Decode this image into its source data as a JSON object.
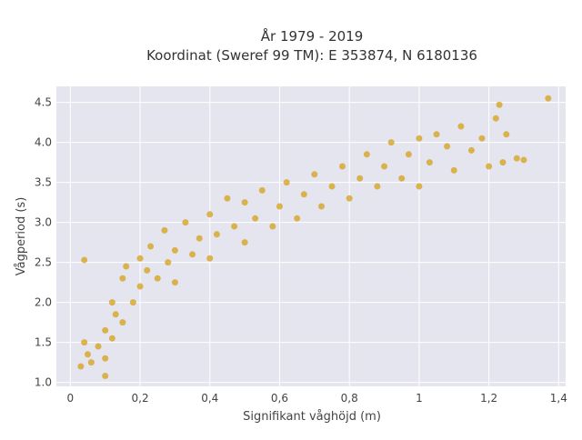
{
  "chart_data": {
    "type": "scatter",
    "title_lines": [
      "År 1979 - 2019",
      "Koordinat (Sweref 99 TM): E 353874, N 6180136"
    ],
    "xlabel": "Signifikant våghöjd (m)",
    "ylabel": "Vågperiod (s)",
    "xlim": [
      -0.04,
      1.42
    ],
    "ylim": [
      0.95,
      4.7
    ],
    "x_ticks": [
      0,
      0.2,
      0.4,
      0.6,
      0.8,
      1,
      1.2,
      1.4
    ],
    "x_tick_labels": [
      "0",
      "0,2",
      "0,4",
      "0,6",
      "0,8",
      "1",
      "1,2",
      "1,4"
    ],
    "y_ticks": [
      1.0,
      1.5,
      2.0,
      2.5,
      3.0,
      3.5,
      4.0,
      4.5
    ],
    "y_tick_labels": [
      "1.0",
      "1.5",
      "2.0",
      "2.5",
      "3.0",
      "3.5",
      "4.0",
      "4.5"
    ],
    "grid": true,
    "legend": "none",
    "colors": {
      "marker": "#d4a017",
      "plot_background": "#e5e5f0",
      "grid": "#ffffff"
    },
    "points": [
      [
        0.03,
        1.2
      ],
      [
        0.04,
        2.53
      ],
      [
        0.04,
        1.5
      ],
      [
        0.05,
        1.35
      ],
      [
        0.06,
        1.25
      ],
      [
        0.08,
        1.45
      ],
      [
        0.1,
        1.08
      ],
      [
        0.1,
        1.65
      ],
      [
        0.1,
        1.3
      ],
      [
        0.12,
        1.55
      ],
      [
        0.12,
        2.0
      ],
      [
        0.13,
        1.85
      ],
      [
        0.15,
        2.3
      ],
      [
        0.15,
        1.75
      ],
      [
        0.16,
        2.45
      ],
      [
        0.18,
        2.0
      ],
      [
        0.2,
        2.55
      ],
      [
        0.2,
        2.2
      ],
      [
        0.22,
        2.4
      ],
      [
        0.23,
        2.7
      ],
      [
        0.25,
        2.3
      ],
      [
        0.27,
        2.9
      ],
      [
        0.28,
        2.5
      ],
      [
        0.3,
        2.65
      ],
      [
        0.3,
        2.25
      ],
      [
        0.33,
        3.0
      ],
      [
        0.35,
        2.6
      ],
      [
        0.37,
        2.8
      ],
      [
        0.4,
        2.55
      ],
      [
        0.4,
        3.1
      ],
      [
        0.42,
        2.85
      ],
      [
        0.45,
        3.3
      ],
      [
        0.47,
        2.95
      ],
      [
        0.5,
        2.75
      ],
      [
        0.5,
        3.25
      ],
      [
        0.53,
        3.05
      ],
      [
        0.55,
        3.4
      ],
      [
        0.58,
        2.95
      ],
      [
        0.6,
        3.2
      ],
      [
        0.62,
        3.5
      ],
      [
        0.65,
        3.05
      ],
      [
        0.67,
        3.35
      ],
      [
        0.7,
        3.6
      ],
      [
        0.72,
        3.2
      ],
      [
        0.75,
        3.45
      ],
      [
        0.78,
        3.7
      ],
      [
        0.8,
        3.3
      ],
      [
        0.83,
        3.55
      ],
      [
        0.85,
        3.85
      ],
      [
        0.88,
        3.45
      ],
      [
        0.9,
        3.7
      ],
      [
        0.92,
        4.0
      ],
      [
        0.95,
        3.55
      ],
      [
        0.97,
        3.85
      ],
      [
        1.0,
        4.05
      ],
      [
        1.0,
        3.45
      ],
      [
        1.03,
        3.75
      ],
      [
        1.05,
        4.1
      ],
      [
        1.08,
        3.95
      ],
      [
        1.1,
        3.65
      ],
      [
        1.12,
        4.2
      ],
      [
        1.15,
        3.9
      ],
      [
        1.18,
        4.05
      ],
      [
        1.2,
        3.7
      ],
      [
        1.22,
        4.3
      ],
      [
        1.24,
        3.75
      ],
      [
        1.25,
        4.1
      ],
      [
        1.28,
        3.8
      ],
      [
        1.3,
        3.78
      ],
      [
        1.23,
        4.47
      ],
      [
        1.37,
        4.55
      ]
    ]
  }
}
